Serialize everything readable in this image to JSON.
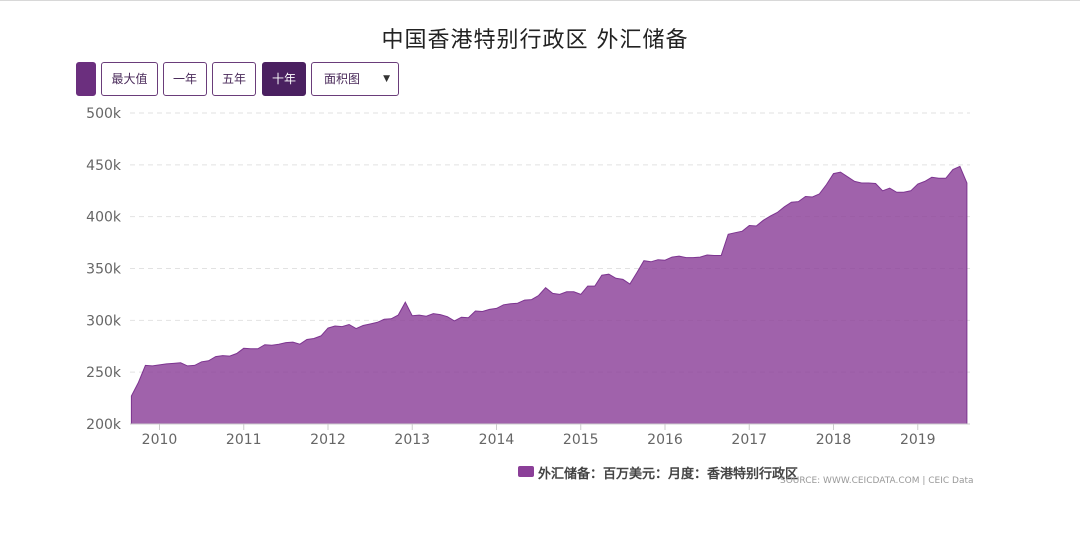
{
  "title": "中国香港特别行政区 外汇储备",
  "toolbar": {
    "max_label": "最大值",
    "one_year_label": "一年",
    "five_year_label": "五年",
    "ten_year_label": "十年",
    "chart_type_value": "面积图"
  },
  "legend": {
    "label": "外汇储备：百万美元：月度：香港特别行政区"
  },
  "source": "SOURCE: WWW.CEICDATA.COM | CEIC Data",
  "colors": {
    "area": "#8b3f98",
    "active_button": "#4a2060"
  },
  "chart_data": {
    "type": "area",
    "title": "中国香港特别行政区 外汇储备",
    "xlabel": "",
    "ylabel": "",
    "xlim": [
      2009.65,
      2019.62
    ],
    "ylim": [
      200000,
      500000
    ],
    "y_ticks": [
      200000,
      250000,
      300000,
      350000,
      400000,
      450000,
      500000
    ],
    "y_tick_labels": [
      "200k",
      "250k",
      "300k",
      "350k",
      "400k",
      "450k",
      "500k"
    ],
    "x_ticks": [
      2010,
      2011,
      2012,
      2013,
      2014,
      2015,
      2016,
      2017,
      2018,
      2019
    ],
    "x_tick_labels": [
      "2010",
      "2011",
      "2012",
      "2013",
      "2014",
      "2015",
      "2016",
      "2017",
      "2018",
      "2019"
    ],
    "grid": true,
    "legend_position": "bottom",
    "series": [
      {
        "name": "外汇储备：百万美元：月度：香港特别行政区",
        "x": [
          2009.667,
          2009.75,
          2009.833,
          2009.917,
          2010.0,
          2010.083,
          2010.167,
          2010.25,
          2010.333,
          2010.417,
          2010.5,
          2010.583,
          2010.667,
          2010.75,
          2010.833,
          2010.917,
          2011.0,
          2011.083,
          2011.167,
          2011.25,
          2011.333,
          2011.417,
          2011.5,
          2011.583,
          2011.667,
          2011.75,
          2011.833,
          2011.917,
          2012.0,
          2012.083,
          2012.167,
          2012.25,
          2012.333,
          2012.417,
          2012.5,
          2012.583,
          2012.667,
          2012.75,
          2012.833,
          2012.917,
          2013.0,
          2013.083,
          2013.167,
          2013.25,
          2013.333,
          2013.417,
          2013.5,
          2013.583,
          2013.667,
          2013.75,
          2013.833,
          2013.917,
          2014.0,
          2014.083,
          2014.167,
          2014.25,
          2014.333,
          2014.417,
          2014.5,
          2014.583,
          2014.667,
          2014.75,
          2014.833,
          2014.917,
          2015.0,
          2015.083,
          2015.167,
          2015.25,
          2015.333,
          2015.417,
          2015.5,
          2015.583,
          2015.667,
          2015.75,
          2015.833,
          2015.917,
          2016.0,
          2016.083,
          2016.167,
          2016.25,
          2016.333,
          2016.417,
          2016.5,
          2016.583,
          2016.667,
          2016.75,
          2016.833,
          2016.917,
          2017.0,
          2017.083,
          2017.167,
          2017.25,
          2017.333,
          2017.417,
          2017.5,
          2017.583,
          2017.667,
          2017.75,
          2017.833,
          2017.917,
          2018.0,
          2018.083,
          2018.167,
          2018.25,
          2018.333,
          2018.417,
          2018.5,
          2018.583,
          2018.667,
          2018.75,
          2018.833,
          2018.917,
          2019.0,
          2019.083,
          2019.167,
          2019.25,
          2019.333,
          2019.417,
          2019.5,
          2019.583
        ],
        "values": [
          227000,
          240000,
          256500,
          256000,
          257000,
          258000,
          258500,
          259000,
          256000,
          256500,
          260000,
          261000,
          265000,
          266000,
          265500,
          268000,
          273000,
          272500,
          272500,
          276500,
          276000,
          277000,
          278500,
          279000,
          277000,
          281500,
          282500,
          285000,
          292500,
          294500,
          294000,
          296000,
          292000,
          295000,
          296500,
          298000,
          301000,
          301500,
          305000,
          317500,
          304500,
          305000,
          304000,
          306500,
          305500,
          303500,
          299500,
          303000,
          302500,
          309000,
          308500,
          310500,
          311500,
          315000,
          316000,
          316500,
          319500,
          320000,
          324000,
          331500,
          326000,
          325000,
          327500,
          327500,
          325000,
          333000,
          333000,
          343500,
          344500,
          340500,
          339500,
          335000,
          346000,
          357500,
          356500,
          358500,
          358000,
          361000,
          362000,
          360500,
          360500,
          361000,
          363000,
          362500,
          362500,
          383000,
          384500,
          386000,
          391500,
          391000,
          396500,
          400500,
          404000,
          409500,
          414000,
          414500,
          419500,
          419000,
          422000,
          431000,
          441500,
          443000,
          438500,
          434000,
          432500,
          432500,
          432000,
          425000,
          427500,
          423500,
          423500,
          425000,
          431500,
          434000,
          438000,
          437000,
          437000,
          445500,
          448500,
          432500
        ]
      }
    ]
  }
}
